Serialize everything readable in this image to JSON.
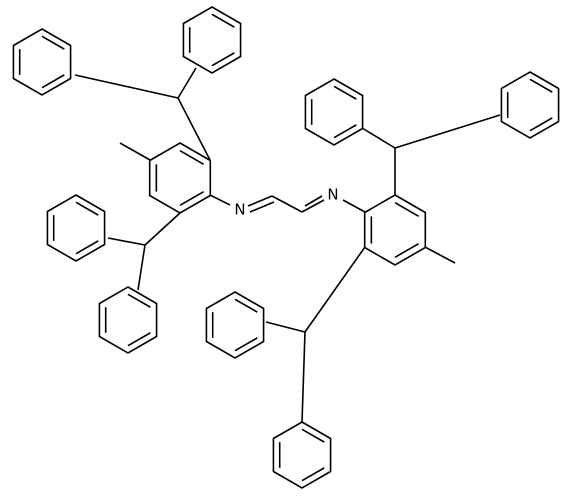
{
  "atoms": [
    {
      "label": "N"
    },
    {
      "label": "N"
    }
  ]
}
